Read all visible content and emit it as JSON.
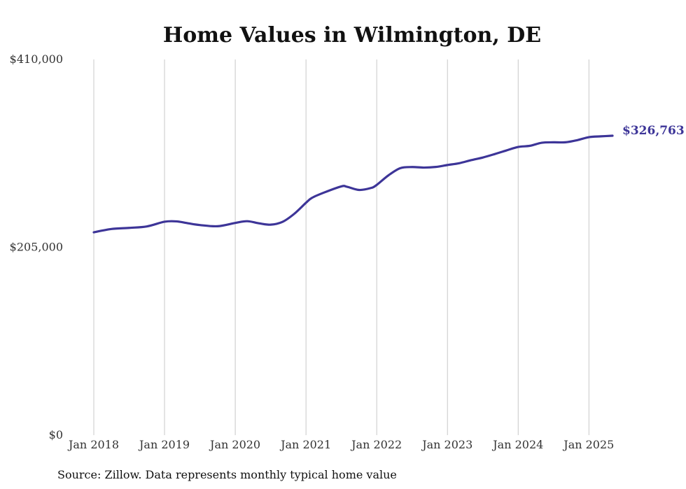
{
  "chart_data": {
    "type": "line",
    "title": "Home Values in Wilmington, DE",
    "source": "Source: Zillow. Data represents monthly typical home value",
    "xlabel": "",
    "ylabel": "",
    "ylim": [
      0,
      410000
    ],
    "y_ticks": [
      0,
      205000,
      410000
    ],
    "y_tick_labels": [
      "$0",
      "$205,000",
      "$410,000"
    ],
    "x_range": [
      "2018-01",
      "2025-05"
    ],
    "x_ticks": [
      "2018-01",
      "2019-01",
      "2020-01",
      "2021-01",
      "2022-01",
      "2023-01",
      "2024-01",
      "2025-01"
    ],
    "x_tick_labels": [
      "Jan 2018",
      "Jan 2019",
      "Jan 2020",
      "Jan 2021",
      "Jan 2022",
      "Jan 2023",
      "Jan 2024",
      "Jan 2025"
    ],
    "grid": "vertical",
    "line_color": "#3d3598",
    "grid_color": "#c8c8c8",
    "end_value_label": "$326,763",
    "series": [
      {
        "points": [
          [
            "2018-01",
            221400
          ],
          [
            "2018-04",
            225000
          ],
          [
            "2018-07",
            226200
          ],
          [
            "2018-10",
            227800
          ],
          [
            "2019-01",
            232900
          ],
          [
            "2019-03",
            233300
          ],
          [
            "2019-05",
            231200
          ],
          [
            "2019-07",
            229300
          ],
          [
            "2019-10",
            228000
          ],
          [
            "2020-01",
            231600
          ],
          [
            "2020-03",
            233500
          ],
          [
            "2020-05",
            231200
          ],
          [
            "2020-07",
            229700
          ],
          [
            "2020-09",
            232700
          ],
          [
            "2020-11",
            241500
          ],
          [
            "2021-01",
            253600
          ],
          [
            "2021-02",
            258900
          ],
          [
            "2021-04",
            264600
          ],
          [
            "2021-07",
            271500
          ],
          [
            "2021-08",
            271000
          ],
          [
            "2021-10",
            267600
          ],
          [
            "2021-12",
            269700
          ],
          [
            "2022-01",
            273100
          ],
          [
            "2022-03",
            283600
          ],
          [
            "2022-05",
            291400
          ],
          [
            "2022-07",
            292600
          ],
          [
            "2022-09",
            292000
          ],
          [
            "2022-11",
            292700
          ],
          [
            "2023-01",
            294800
          ],
          [
            "2023-03",
            296800
          ],
          [
            "2023-05",
            300100
          ],
          [
            "2023-07",
            303000
          ],
          [
            "2023-09",
            306700
          ],
          [
            "2023-11",
            310700
          ],
          [
            "2024-01",
            314500
          ],
          [
            "2024-03",
            315800
          ],
          [
            "2024-05",
            319100
          ],
          [
            "2024-07",
            319600
          ],
          [
            "2024-09",
            319600
          ],
          [
            "2024-11",
            321900
          ],
          [
            "2025-01",
            325200
          ],
          [
            "2025-03",
            326100
          ],
          [
            "2025-05",
            326763
          ]
        ]
      }
    ]
  }
}
